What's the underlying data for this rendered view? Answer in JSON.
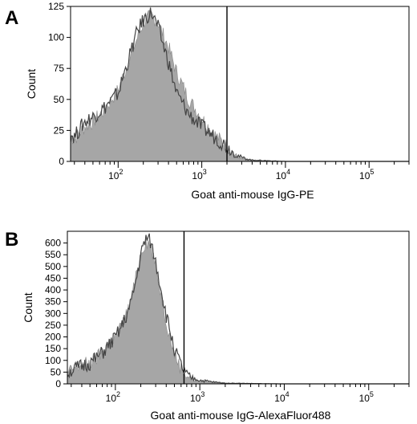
{
  "colors": {
    "fill": "#a6a6a6",
    "outline": "#444444",
    "axis": "#000000",
    "gate": "#000000"
  },
  "chart_data": [
    {
      "type": "area",
      "panel_label": "A",
      "xlabel": "Goat anti-mouse IgG-PE",
      "ylabel": "Count",
      "x_scale": "log",
      "xlim": [
        27,
        300000
      ],
      "ylim": [
        0,
        125
      ],
      "y_ticks": [
        0,
        25,
        50,
        75,
        100,
        125
      ],
      "x_ticks": [
        100,
        1000,
        10000,
        100000
      ],
      "x_tick_labels": [
        {
          "base": "10",
          "exp": "2"
        },
        {
          "base": "10",
          "exp": "3"
        },
        {
          "base": "10",
          "exp": "4"
        },
        {
          "base": "10",
          "exp": "5"
        }
      ],
      "gate_x": 2000,
      "grid": false,
      "series": [
        {
          "role": "filled",
          "x": [
            27,
            30,
            40,
            50,
            70,
            100,
            130,
            170,
            200,
            250,
            300,
            400,
            500,
            700,
            1000,
            1400,
            2000,
            2500,
            3000,
            4000,
            10000,
            100000,
            300000
          ],
          "values": [
            20,
            18,
            28,
            32,
            42,
            58,
            78,
            100,
            112,
            118,
            112,
            92,
            72,
            50,
            35,
            22,
            12,
            5,
            2,
            1,
            0,
            0,
            0
          ]
        },
        {
          "role": "outline",
          "x": [
            27,
            30,
            40,
            50,
            70,
            100,
            130,
            170,
            200,
            250,
            300,
            400,
            500,
            700,
            1000,
            1400,
            2000,
            2500,
            3000,
            4000,
            10000,
            100000,
            300000
          ],
          "values": [
            22,
            20,
            32,
            36,
            44,
            55,
            80,
            105,
            114,
            120,
            108,
            80,
            55,
            38,
            28,
            20,
            12,
            6,
            3,
            1,
            0,
            0,
            0
          ]
        }
      ]
    },
    {
      "type": "area",
      "panel_label": "B",
      "xlabel": "Goat anti-mouse IgG-AlexaFluor488",
      "ylabel": "Count",
      "x_scale": "log",
      "xlim": [
        27,
        300000
      ],
      "ylim": [
        0,
        650
      ],
      "y_ticks": [
        0,
        50,
        100,
        150,
        200,
        250,
        300,
        350,
        400,
        450,
        500,
        550,
        600
      ],
      "x_ticks": [
        100,
        1000,
        10000,
        100000
      ],
      "x_tick_labels": [
        {
          "base": "10",
          "exp": "2"
        },
        {
          "base": "10",
          "exp": "3"
        },
        {
          "base": "10",
          "exp": "4"
        },
        {
          "base": "10",
          "exp": "5"
        }
      ],
      "gate_x": 650,
      "grid": false,
      "series": [
        {
          "role": "filled",
          "x": [
            27,
            30,
            40,
            50,
            60,
            70,
            80,
            100,
            120,
            150,
            180,
            200,
            230,
            260,
            300,
            350,
            400,
            500,
            600,
            700,
            800,
            1000,
            1500,
            2000,
            5000,
            10000,
            100000,
            300000
          ],
          "values": [
            45,
            60,
            80,
            90,
            110,
            135,
            160,
            200,
            250,
            340,
            470,
            560,
            610,
            590,
            500,
            380,
            270,
            130,
            65,
            35,
            20,
            12,
            6,
            3,
            1,
            0,
            0,
            0
          ]
        },
        {
          "role": "outline",
          "x": [
            27,
            30,
            40,
            50,
            60,
            70,
            80,
            100,
            120,
            150,
            180,
            200,
            230,
            260,
            300,
            350,
            400,
            500,
            600,
            700,
            800,
            1000,
            1500,
            2000,
            5000,
            10000,
            100000,
            300000
          ],
          "values": [
            40,
            55,
            75,
            88,
            108,
            130,
            155,
            195,
            245,
            330,
            460,
            550,
            620,
            605,
            520,
            400,
            290,
            150,
            75,
            40,
            25,
            15,
            7,
            3,
            1,
            0,
            0,
            0
          ]
        }
      ]
    }
  ]
}
